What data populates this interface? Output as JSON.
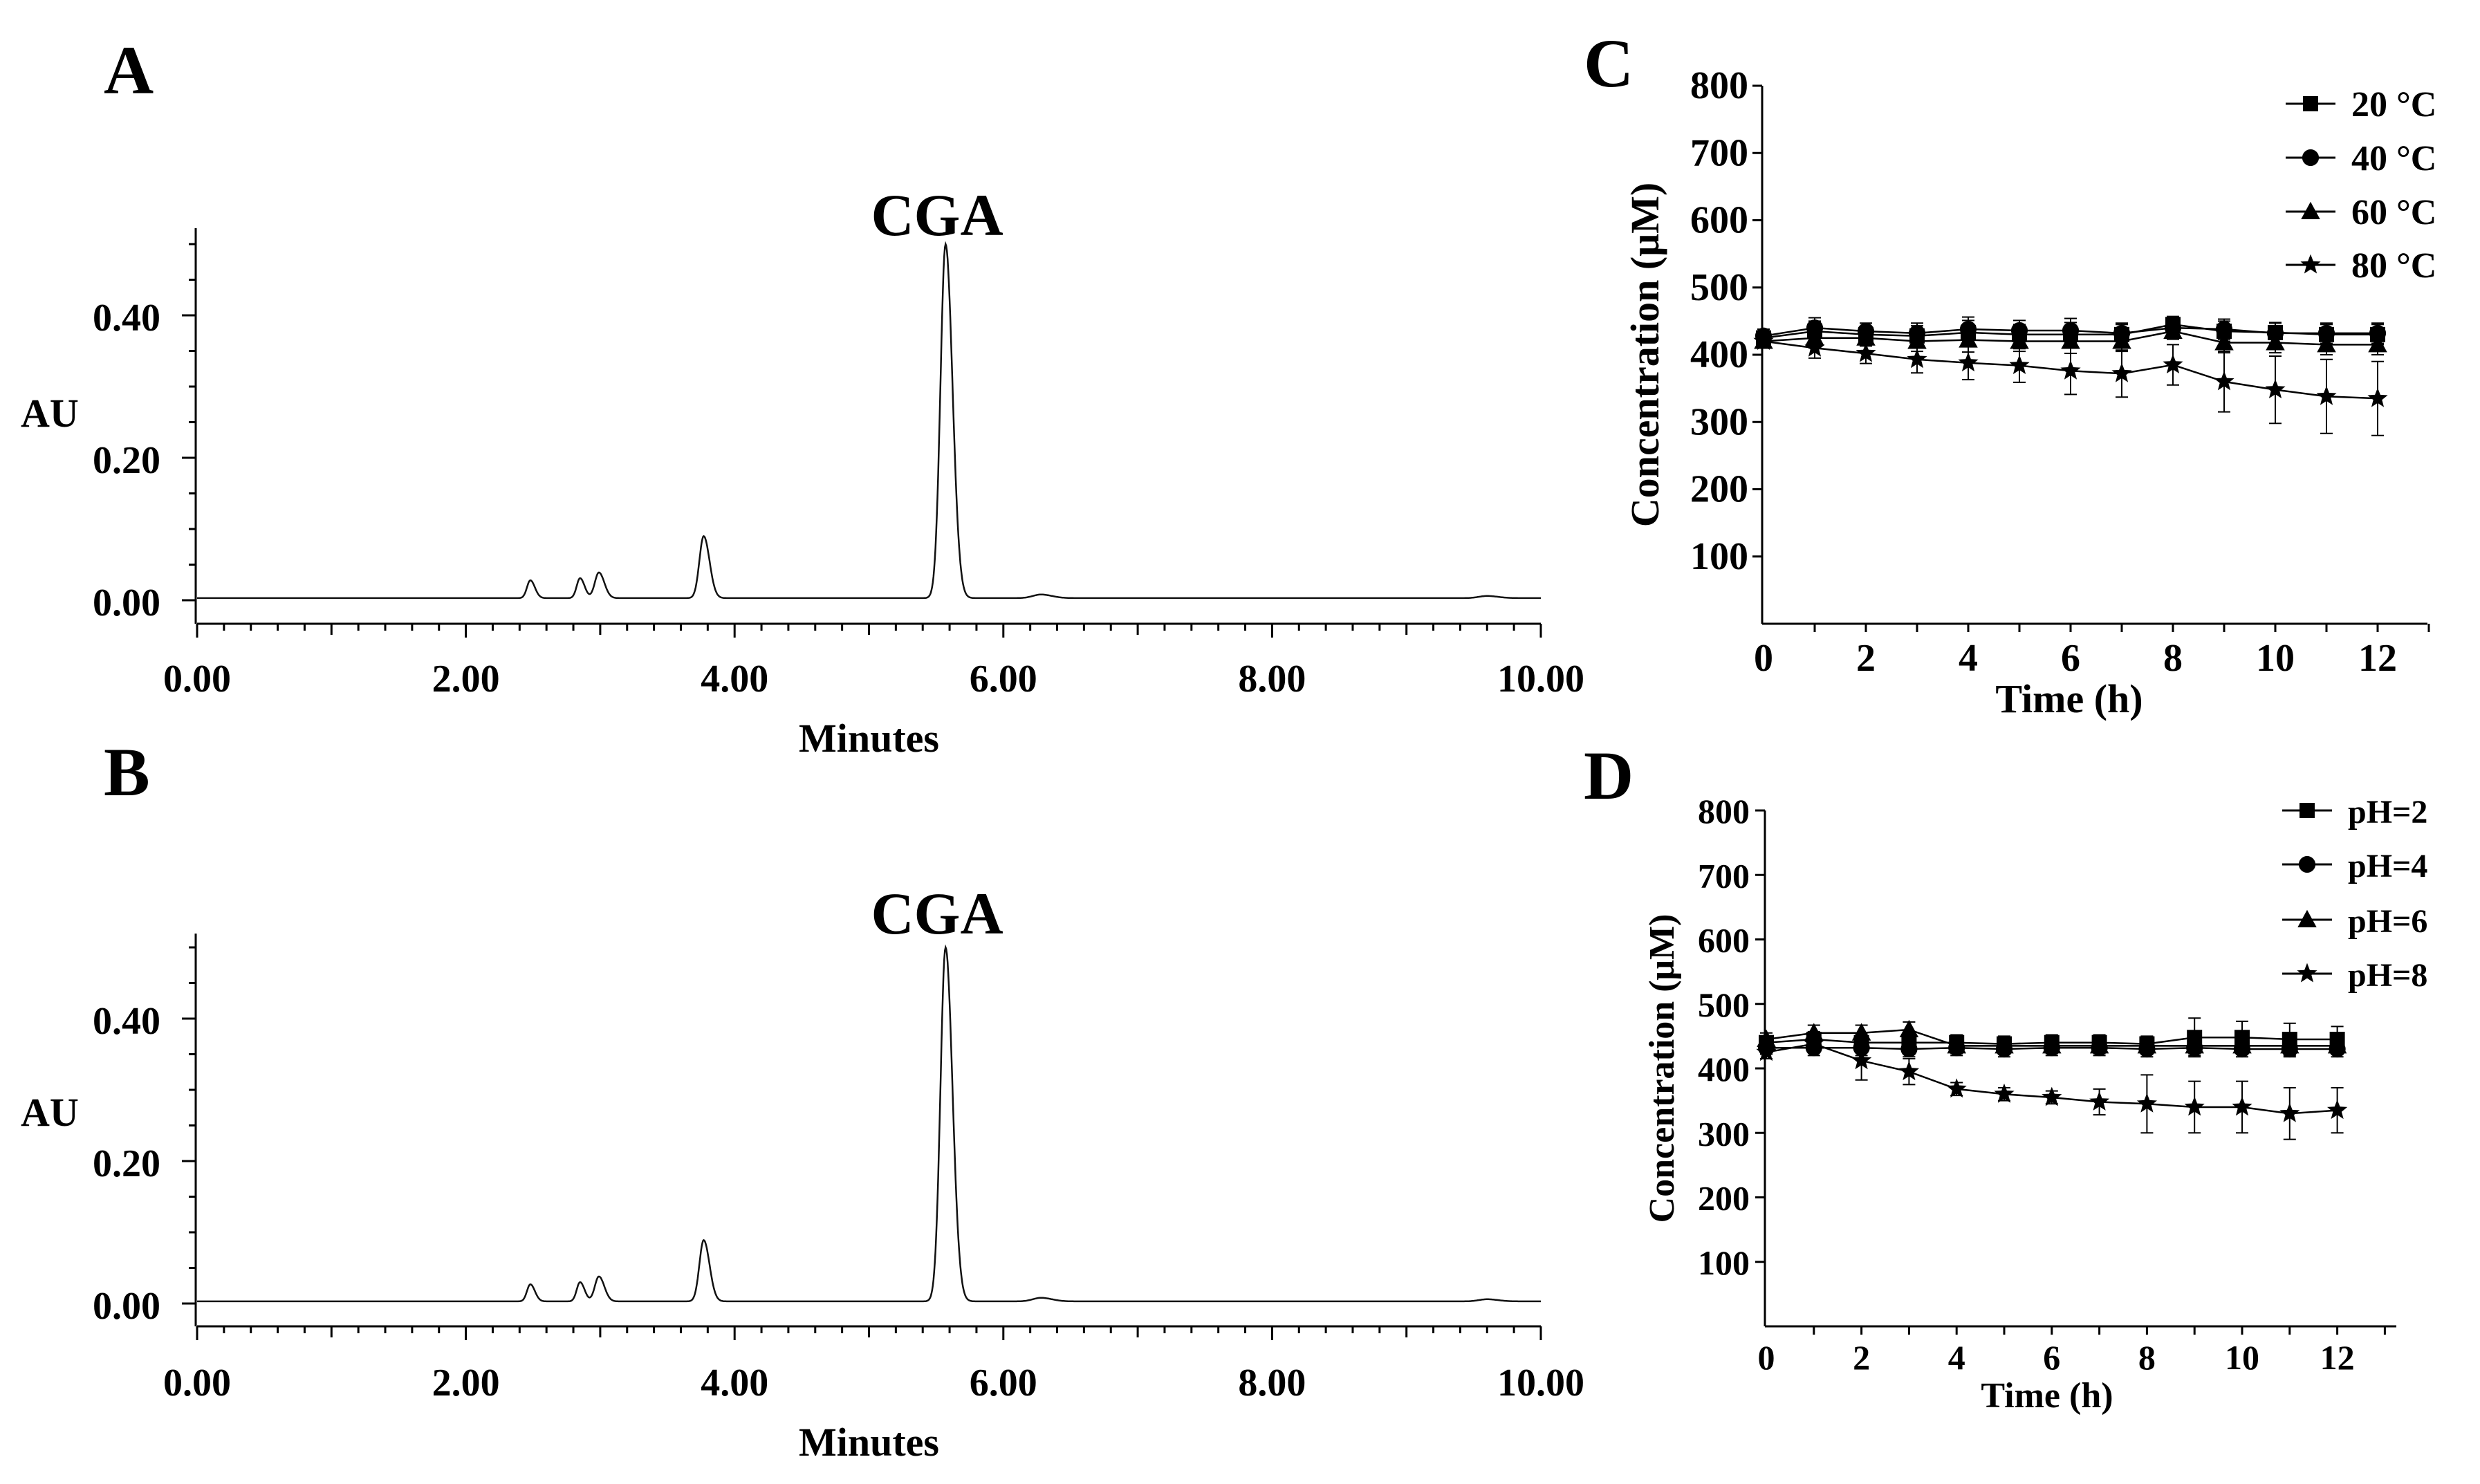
{
  "chart_data": [
    {
      "panel": "A",
      "type": "line",
      "annotation": "CGA",
      "xlabel": "Minutes",
      "ylabel": "AU",
      "xlim": [
        0,
        10
      ],
      "ylim": [
        -0.03,
        0.53
      ],
      "x_ticks": [
        "0.00",
        "2.00",
        "4.00",
        "6.00",
        "8.00",
        "10.00"
      ],
      "y_ticks": [
        "0.00",
        "0.20",
        "0.40"
      ],
      "baseline": 0.003,
      "peaks": [
        {
          "t": 2.48,
          "h": 0.025,
          "w": 0.025
        },
        {
          "t": 2.85,
          "h": 0.028,
          "w": 0.025
        },
        {
          "t": 2.99,
          "h": 0.036,
          "w": 0.03
        },
        {
          "t": 3.77,
          "h": 0.087,
          "w": 0.032
        },
        {
          "t": 5.57,
          "h": 0.497,
          "w": 0.038
        },
        {
          "t": 6.28,
          "h": 0.005,
          "w": 0.06
        },
        {
          "t": 9.6,
          "h": 0.003,
          "w": 0.06
        }
      ]
    },
    {
      "panel": "B",
      "type": "line",
      "annotation": "CGA",
      "xlabel": "Minutes",
      "ylabel": "AU",
      "xlim": [
        0,
        10
      ],
      "ylim": [
        -0.03,
        0.53
      ],
      "x_ticks": [
        "0.00",
        "2.00",
        "4.00",
        "6.00",
        "8.00",
        "10.00"
      ],
      "y_ticks": [
        "0.00",
        "0.20",
        "0.40"
      ],
      "baseline": 0.003,
      "peaks": [
        {
          "t": 2.48,
          "h": 0.024,
          "w": 0.025
        },
        {
          "t": 2.85,
          "h": 0.027,
          "w": 0.025
        },
        {
          "t": 2.99,
          "h": 0.035,
          "w": 0.03
        },
        {
          "t": 3.77,
          "h": 0.086,
          "w": 0.032
        },
        {
          "t": 5.57,
          "h": 0.497,
          "w": 0.038
        },
        {
          "t": 6.28,
          "h": 0.005,
          "w": 0.06
        },
        {
          "t": 9.6,
          "h": 0.003,
          "w": 0.06
        }
      ]
    },
    {
      "panel": "C",
      "type": "line",
      "xlabel": "Time (h)",
      "ylabel": "Concentration (μM)",
      "xlim": [
        0,
        13
      ],
      "ylim": [
        0,
        800
      ],
      "x_ticks": [
        0,
        2,
        4,
        6,
        8,
        10,
        12
      ],
      "y_ticks": [
        100,
        200,
        300,
        400,
        500,
        600,
        700,
        800
      ],
      "x": [
        0,
        1,
        2,
        3,
        4,
        5,
        6,
        7,
        8,
        9,
        10,
        11,
        12
      ],
      "series": [
        {
          "name": "20 °C",
          "marker": "square",
          "values": [
            425,
            435,
            430,
            428,
            433,
            430,
            430,
            430,
            445,
            435,
            433,
            430,
            430
          ],
          "errors": [
            10,
            15,
            12,
            15,
            18,
            15,
            18,
            15,
            12,
            15,
            15,
            15,
            15
          ]
        },
        {
          "name": "40 °C",
          "marker": "circle",
          "values": [
            428,
            440,
            435,
            432,
            438,
            436,
            436,
            432,
            440,
            438,
            432,
            432,
            432
          ],
          "errors": [
            10,
            15,
            12,
            15,
            18,
            15,
            18,
            15,
            12,
            15,
            15,
            15,
            15
          ]
        },
        {
          "name": "60 °C",
          "marker": "triangle",
          "values": [
            420,
            425,
            425,
            420,
            422,
            420,
            420,
            420,
            435,
            418,
            418,
            415,
            415
          ],
          "errors": [
            10,
            15,
            12,
            15,
            18,
            15,
            18,
            15,
            12,
            15,
            15,
            15,
            15
          ]
        },
        {
          "name": "80 °C",
          "marker": "star",
          "values": [
            420,
            410,
            402,
            393,
            388,
            384,
            376,
            372,
            385,
            360,
            348,
            338,
            335
          ],
          "errors": [
            10,
            15,
            15,
            20,
            25,
            25,
            35,
            35,
            30,
            45,
            50,
            55,
            55
          ]
        }
      ]
    },
    {
      "panel": "D",
      "type": "line",
      "xlabel": "Time (h)",
      "ylabel": "Concentration (μM)",
      "xlim": [
        0,
        13
      ],
      "ylim": [
        0,
        800
      ],
      "x_ticks": [
        0,
        2,
        4,
        6,
        8,
        10,
        12
      ],
      "y_ticks": [
        100,
        200,
        300,
        400,
        500,
        600,
        700,
        800
      ],
      "x": [
        0,
        1,
        2,
        3,
        4,
        5,
        6,
        7,
        8,
        9,
        10,
        11,
        12
      ],
      "series": [
        {
          "name": "pH=2",
          "marker": "square",
          "values": [
            440,
            445,
            440,
            440,
            440,
            438,
            440,
            440,
            438,
            448,
            448,
            445,
            445
          ],
          "errors": [
            10,
            12,
            15,
            12,
            12,
            12,
            12,
            12,
            12,
            30,
            25,
            25,
            20
          ]
        },
        {
          "name": "pH=4",
          "marker": "circle",
          "values": [
            432,
            432,
            432,
            430,
            432,
            430,
            432,
            432,
            430,
            432,
            430,
            430,
            430
          ],
          "errors": [
            10,
            12,
            12,
            12,
            12,
            12,
            12,
            12,
            12,
            12,
            12,
            12,
            12
          ]
        },
        {
          "name": "pH=6",
          "marker": "triangle",
          "values": [
            445,
            455,
            455,
            460,
            435,
            435,
            435,
            435,
            435,
            435,
            435,
            435,
            435
          ],
          "errors": [
            10,
            12,
            12,
            12,
            12,
            12,
            12,
            12,
            12,
            12,
            12,
            12,
            12
          ]
        },
        {
          "name": "pH=8",
          "marker": "star",
          "values": [
            425,
            438,
            412,
            395,
            368,
            360,
            355,
            348,
            345,
            340,
            340,
            330,
            335
          ],
          "errors": [
            10,
            12,
            30,
            20,
            10,
            10,
            10,
            20,
            45,
            40,
            40,
            40,
            35
          ]
        }
      ]
    }
  ]
}
